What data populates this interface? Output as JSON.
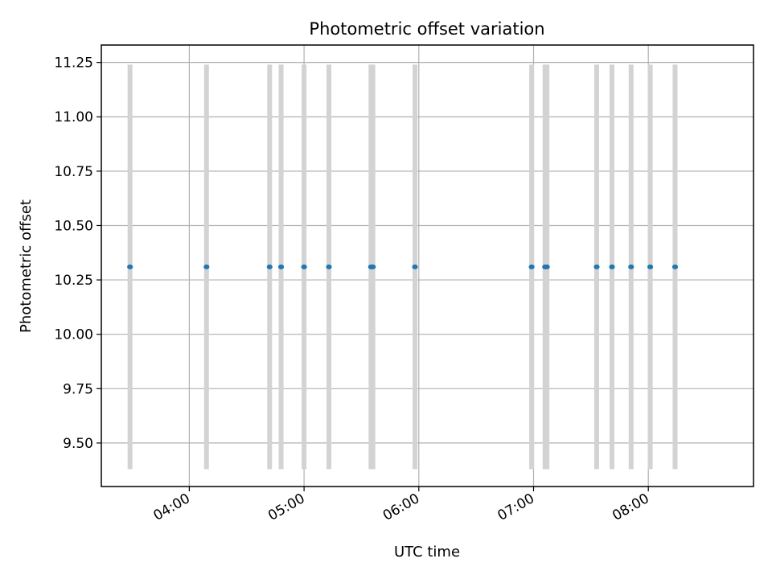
{
  "chart_data": {
    "type": "scatter",
    "title": "Photometric offset variation",
    "xlabel": "UTC time",
    "ylabel": "Photometric offset",
    "x_ticks": [
      "04:00",
      "05:00",
      "06:00",
      "07:00",
      "08:00"
    ],
    "y_ticks": [
      "9.50",
      "9.75",
      "10.00",
      "10.25",
      "10.50",
      "10.75",
      "11.00",
      "11.25"
    ],
    "xlim": [
      "03:14",
      "08:55"
    ],
    "ylim": [
      9.3,
      11.33
    ],
    "grid": true,
    "band_range": [
      9.38,
      11.24
    ],
    "colors": {
      "points": "#1f77b4",
      "bands": "#d3d3d3",
      "grid": "#b0b0b0"
    },
    "series": [
      {
        "x": [
          "03:29",
          "04:09",
          "04:42",
          "04:48",
          "05:00",
          "05:13",
          "05:35",
          "05:36",
          "05:58",
          "06:59",
          "07:06",
          "07:07",
          "07:33",
          "07:41",
          "07:51",
          "08:01",
          "08:14"
        ],
        "y": [
          10.31,
          10.31,
          10.31,
          10.31,
          10.31,
          10.31,
          10.31,
          10.31,
          10.31,
          10.31,
          10.31,
          10.31,
          10.31,
          10.31,
          10.31,
          10.31,
          10.31
        ]
      }
    ]
  }
}
